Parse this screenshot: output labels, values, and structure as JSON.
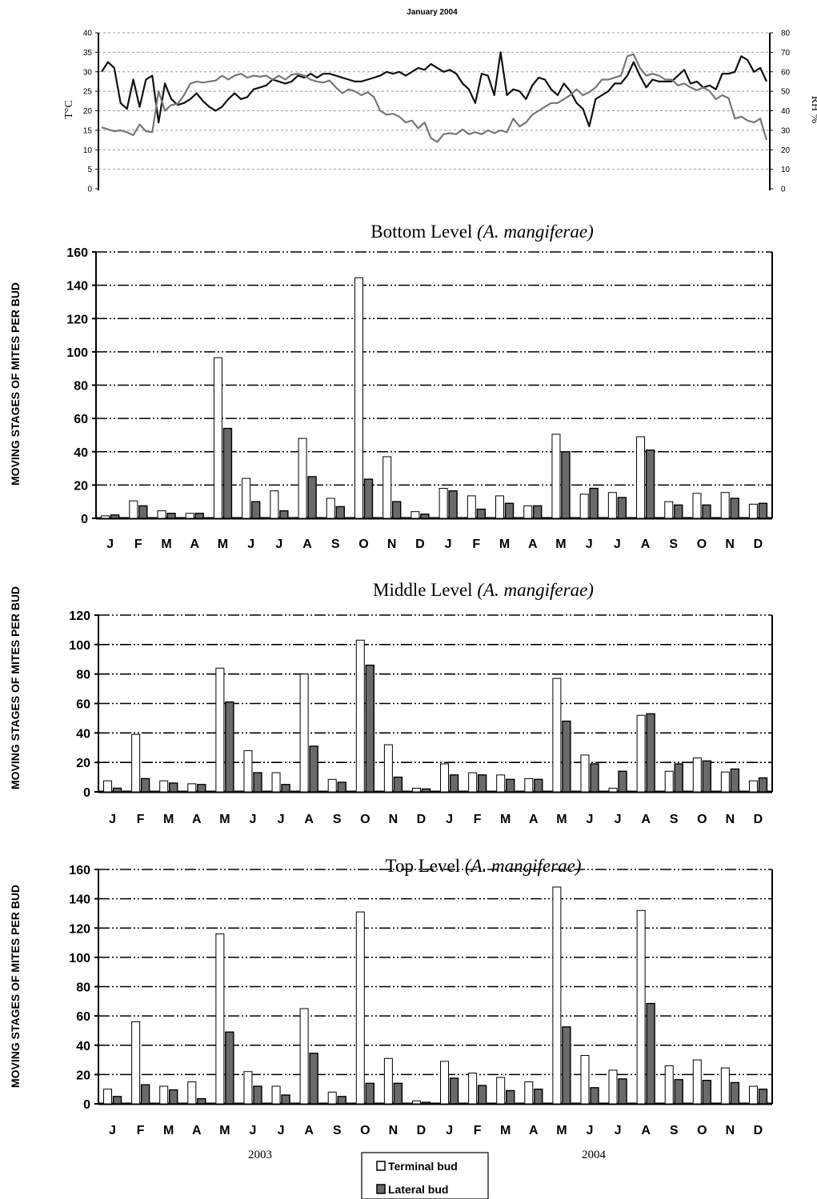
{
  "top_panel": {
    "title": "January 2004",
    "ylabel_left": "T°C",
    "ylabel_right": "RH %",
    "left_ticks": [
      "0",
      "5",
      "10",
      "15",
      "20",
      "25",
      "30",
      "35",
      "40"
    ],
    "right_ticks": [
      "0",
      "10",
      "20",
      "30",
      "40",
      "50",
      "60",
      "70",
      "80"
    ]
  },
  "years": [
    "2003",
    "2004"
  ],
  "legend": {
    "terminal": "Terminal bud",
    "lateral": "Lateral bud"
  },
  "ylabel": "MOVING STAGES OF MITES PER BUD",
  "chart_data": [
    {
      "type": "line",
      "title": "January 2004",
      "ylabel_left": "T°C",
      "ylabel_right": "RH %",
      "ylim_left": [
        0,
        40
      ],
      "ylim_right": [
        0,
        80
      ],
      "series": [
        {
          "name": "",
          "color": "#111111",
          "axis": "left",
          "values": [
            30,
            32.5,
            31,
            22,
            20.5,
            28,
            21,
            28,
            29,
            17,
            27,
            23,
            21.5,
            22,
            23,
            24.5,
            22.5,
            21,
            20,
            21,
            23,
            24.5,
            23,
            23.5,
            25.5,
            26,
            26.5,
            28,
            27.5,
            27,
            27.5,
            29,
            28.5,
            29.5,
            28.5,
            29.5,
            29.5,
            29,
            28.5,
            28,
            27.5,
            27.5,
            28,
            28.5,
            29,
            30,
            29.5,
            30,
            29,
            30,
            31,
            30.5,
            32,
            31,
            30,
            30.5,
            29.5,
            27,
            25.5,
            22,
            29.5,
            29,
            24,
            35,
            24,
            25.5,
            25,
            23,
            26.5,
            28.5,
            28,
            25.5,
            24,
            27,
            25,
            22,
            20.5,
            16,
            23,
            24,
            25,
            27,
            27,
            29,
            32.5,
            29,
            26,
            28,
            27.5,
            27.5,
            27.5,
            29,
            30.5,
            27,
            27.5,
            26,
            26.5,
            25.5,
            29.5,
            29.5,
            30,
            34,
            33,
            30,
            31,
            27.5
          ]
        },
        {
          "name": "",
          "color": "#777777",
          "axis": "right",
          "values": [
            31.5,
            30.5,
            29.5,
            30,
            29,
            27.5,
            33,
            29.5,
            29,
            50,
            40,
            43,
            43.5,
            48,
            54,
            55,
            54.5,
            55,
            55.5,
            58,
            56,
            58,
            59,
            57,
            58,
            57.5,
            58,
            56,
            58,
            56,
            58.5,
            59,
            58,
            56,
            55,
            54.5,
            55.5,
            52,
            49,
            51,
            50,
            48,
            49.5,
            47,
            40,
            38,
            38.5,
            37,
            34,
            35,
            31,
            34,
            26,
            24,
            28,
            28.5,
            28,
            30.5,
            28,
            29,
            28,
            30,
            28.5,
            30,
            29,
            36,
            32,
            34,
            38,
            40,
            42,
            44,
            44,
            46,
            48,
            51,
            48,
            49.5,
            52,
            56,
            56,
            57,
            58,
            68,
            69,
            62,
            58,
            59,
            58,
            56,
            56,
            53,
            54,
            52,
            50.5,
            52,
            50,
            46,
            48,
            46.5,
            36,
            37,
            35,
            34,
            36,
            25
          ]
        }
      ]
    },
    {
      "type": "bar",
      "title": "Bottom Level",
      "title_species": "(A. mangiferae)",
      "ylabel": "MOVING STAGES OF MITES PER BUD",
      "ylim": [
        0,
        160
      ],
      "yticks": [
        "0",
        "20",
        "40",
        "60",
        "80",
        "100",
        "120",
        "140",
        "160"
      ],
      "categories": [
        "J",
        "F",
        "M",
        "A",
        "M",
        "J",
        "J",
        "A",
        "S",
        "O",
        "N",
        "D",
        "J",
        "F",
        "M",
        "A",
        "M",
        "J",
        "J",
        "A",
        "S",
        "O",
        "N",
        "D"
      ],
      "series": [
        {
          "name": "Terminal bud",
          "color": "#ffffff",
          "values": [
            1.5,
            10.5,
            4.5,
            3,
            96.5,
            24,
            16.5,
            48,
            12,
            144.5,
            37,
            4,
            18,
            13.5,
            13.5,
            7.5,
            50.5,
            14.5,
            15.5,
            49,
            10,
            15,
            15.5,
            8.5
          ]
        },
        {
          "name": "Lateral bud",
          "color": "#6a6a6a",
          "values": [
            2,
            7.5,
            3,
            3,
            54,
            10,
            4.5,
            25,
            7,
            23.5,
            10,
            2.5,
            16.5,
            5.5,
            9,
            7.5,
            40,
            18,
            12.5,
            41,
            8,
            8,
            12,
            9
          ]
        }
      ]
    },
    {
      "type": "bar",
      "title": "Middle Level",
      "title_species": "(A. mangiferae)",
      "ylabel": "MOVING STAGES OF MITES PER BUD",
      "ylim": [
        0,
        120
      ],
      "yticks": [
        "0",
        "20",
        "40",
        "60",
        "80",
        "100",
        "120"
      ],
      "categories": [
        "J",
        "F",
        "M",
        "A",
        "M",
        "J",
        "J",
        "A",
        "S",
        "O",
        "N",
        "D",
        "J",
        "F",
        "M",
        "A",
        "M",
        "J",
        "J",
        "A",
        "S",
        "O",
        "N",
        "D"
      ],
      "series": [
        {
          "name": "Terminal bud",
          "color": "#ffffff",
          "values": [
            7.5,
            39,
            7.5,
            5.5,
            84,
            28,
            13,
            80,
            8.5,
            103,
            32,
            2.5,
            19,
            13,
            11.5,
            9,
            77,
            25,
            2.5,
            52,
            14,
            23,
            13.5,
            7.5
          ]
        },
        {
          "name": "Lateral bud",
          "color": "#6a6a6a",
          "values": [
            2.5,
            9,
            6,
            5,
            61,
            13,
            5,
            31,
            6.5,
            86,
            10,
            2,
            11.5,
            11.5,
            8.5,
            8.5,
            48,
            19,
            14,
            53,
            19,
            21,
            15.5,
            9.5
          ]
        }
      ]
    },
    {
      "type": "bar",
      "title": "Top Level",
      "title_species": "(A. mangiferae)",
      "ylabel": "MOVING STAGES OF MITES PER BUD",
      "ylim": [
        0,
        160
      ],
      "yticks": [
        "0",
        "20",
        "40",
        "60",
        "80",
        "100",
        "120",
        "140",
        "160"
      ],
      "categories": [
        "J",
        "F",
        "M",
        "A",
        "M",
        "J",
        "J",
        "A",
        "S",
        "O",
        "N",
        "D",
        "J",
        "F",
        "M",
        "A",
        "M",
        "J",
        "J",
        "A",
        "S",
        "O",
        "N",
        "D"
      ],
      "series": [
        {
          "name": "Terminal bud",
          "color": "#ffffff",
          "values": [
            10,
            56,
            12,
            15,
            116,
            22,
            12,
            65,
            8,
            131,
            31,
            2,
            29,
            21,
            18,
            15,
            148,
            33,
            23,
            132,
            26,
            30,
            24.5,
            12
          ]
        },
        {
          "name": "Lateral bud",
          "color": "#6a6a6a",
          "values": [
            5,
            13,
            9.5,
            3.5,
            49,
            12,
            6,
            34.5,
            5,
            14,
            14,
            1,
            17.5,
            12.5,
            9,
            10,
            52.5,
            11,
            17,
            68.5,
            16.5,
            16,
            14.5,
            10
          ]
        }
      ]
    }
  ]
}
